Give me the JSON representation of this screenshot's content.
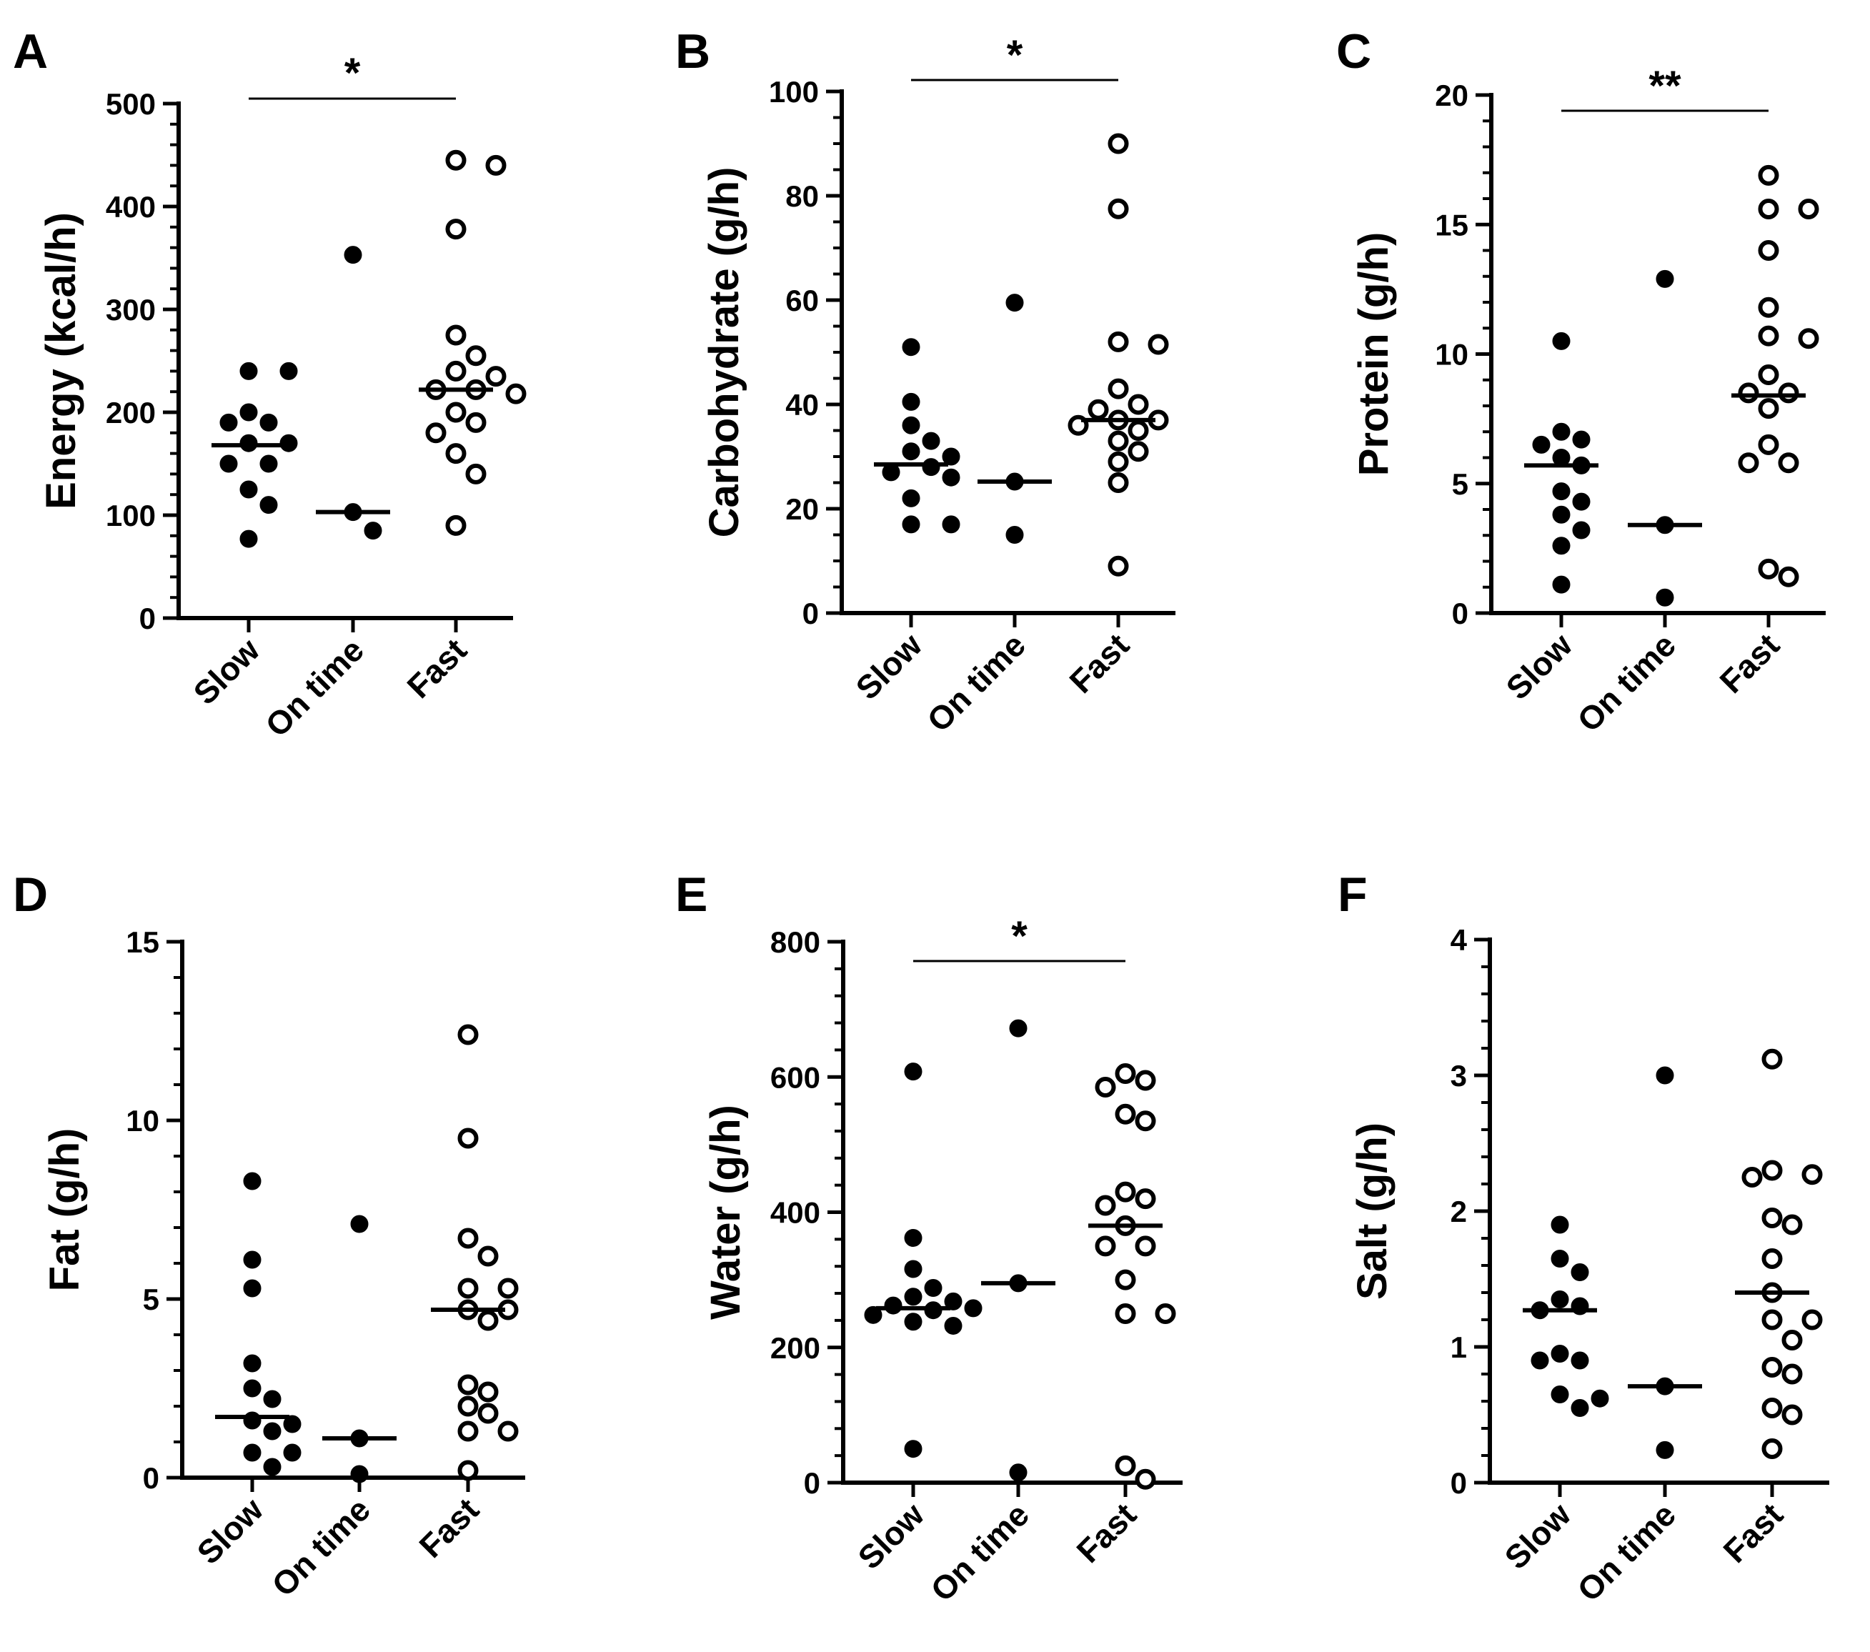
{
  "chart_data": [
    {
      "type": "scatter",
      "panel": "A",
      "ylabel": "Energy (kcal/h)",
      "ylim": [
        0,
        500
      ],
      "yticks": [
        0,
        100,
        200,
        300,
        400,
        500
      ],
      "minor_step": 20,
      "categories": [
        "Slow",
        "On time",
        "Fast"
      ],
      "series": [
        {
          "name": "Slow",
          "marker": "filled",
          "median": 168,
          "values": [
            240,
            240,
            190,
            200,
            190,
            170,
            150,
            125,
            170,
            150,
            110,
            77
          ]
        },
        {
          "name": "On time",
          "marker": "filled",
          "median": 103,
          "values": [
            353,
            103,
            85
          ]
        },
        {
          "name": "Fast",
          "marker": "open",
          "median": 222,
          "values": [
            445,
            440,
            378,
            275,
            255,
            240,
            235,
            222,
            222,
            218,
            200,
            190,
            180,
            160,
            140,
            90
          ]
        }
      ],
      "significance": {
        "label": "*",
        "from": "Slow",
        "to": "Fast"
      }
    },
    {
      "type": "scatter",
      "panel": "B",
      "ylabel": "Carbohydrate (g/h)",
      "ylim": [
        0,
        100
      ],
      "yticks": [
        0,
        20,
        40,
        60,
        80,
        100
      ],
      "minor_step": 5,
      "categories": [
        "Slow",
        "On time",
        "Fast"
      ],
      "series": [
        {
          "name": "Slow",
          "marker": "filled",
          "median": 28.5,
          "values": [
            51,
            40.5,
            36,
            33,
            30,
            31,
            28,
            26,
            27,
            22,
            17,
            17
          ]
        },
        {
          "name": "On time",
          "marker": "filled",
          "median": 25.2,
          "values": [
            59.5,
            25.2,
            15
          ]
        },
        {
          "name": "Fast",
          "marker": "open",
          "median": 37,
          "values": [
            90,
            77.5,
            52,
            51.5,
            43,
            40,
            39,
            37,
            37,
            36,
            35,
            33,
            31,
            29,
            25,
            9
          ]
        }
      ],
      "significance": {
        "label": "*",
        "from": "Slow",
        "to": "Fast"
      }
    },
    {
      "type": "scatter",
      "panel": "C",
      "ylabel": "Protein (g/h)",
      "ylim": [
        0,
        20
      ],
      "yticks": [
        0,
        5,
        10,
        15,
        20
      ],
      "minor_step": 1,
      "categories": [
        "Slow",
        "On time",
        "Fast"
      ],
      "series": [
        {
          "name": "Slow",
          "marker": "filled",
          "median": 5.7,
          "values": [
            10.5,
            7,
            6.5,
            6.7,
            6,
            5.7,
            4.7,
            4.3,
            3.8,
            3.2,
            2.6,
            1.1
          ]
        },
        {
          "name": "On time",
          "marker": "filled",
          "median": 3.4,
          "values": [
            12.9,
            3.4,
            0.6
          ]
        },
        {
          "name": "Fast",
          "marker": "open",
          "median": 8.4,
          "values": [
            16.9,
            15.6,
            15.6,
            14,
            11.8,
            10.7,
            10.6,
            9.2,
            8.5,
            8.5,
            7.9,
            6.5,
            5.8,
            5.8,
            1.7,
            1.4
          ]
        }
      ],
      "significance": {
        "label": "**",
        "from": "Slow",
        "to": "Fast"
      }
    },
    {
      "type": "scatter",
      "panel": "D",
      "ylabel": "Fat (g/h)",
      "ylim": [
        0,
        15
      ],
      "yticks": [
        0,
        5,
        10,
        15
      ],
      "minor_step": 1,
      "categories": [
        "Slow",
        "On time",
        "Fast"
      ],
      "series": [
        {
          "name": "Slow",
          "marker": "filled",
          "median": 1.7,
          "values": [
            8.3,
            6.1,
            5.3,
            3.2,
            2.5,
            2.2,
            1.6,
            1.5,
            1.3,
            0.7,
            0.7,
            0.3
          ]
        },
        {
          "name": "On time",
          "marker": "filled",
          "median": 1.1,
          "values": [
            7.1,
            1.1,
            0.1
          ]
        },
        {
          "name": "Fast",
          "marker": "open",
          "median": 4.7,
          "values": [
            12.4,
            9.5,
            6.7,
            6.2,
            5.3,
            5.3,
            4.7,
            4.7,
            4.4,
            2.6,
            2.4,
            2.0,
            1.8,
            1.3,
            1.3,
            0.2
          ]
        }
      ]
    },
    {
      "type": "scatter",
      "panel": "E",
      "ylabel": "Water (g/h)",
      "ylim": [
        0,
        800
      ],
      "yticks": [
        0,
        200,
        400,
        600,
        800
      ],
      "minor_step": 40,
      "categories": [
        "Slow",
        "On time",
        "Fast"
      ],
      "series": [
        {
          "name": "Slow",
          "marker": "filled",
          "median": 258,
          "values": [
            608,
            362,
            316,
            288,
            275,
            268,
            262,
            258,
            255,
            248,
            238,
            232,
            50
          ]
        },
        {
          "name": "On time",
          "marker": "filled",
          "median": 295,
          "values": [
            672,
            295,
            15
          ]
        },
        {
          "name": "Fast",
          "marker": "open",
          "median": 380,
          "values": [
            605,
            595,
            585,
            545,
            535,
            430,
            420,
            410,
            380,
            350,
            350,
            300,
            250,
            250,
            25,
            5
          ]
        }
      ],
      "significance": {
        "label": "*",
        "from": "Slow",
        "to": "Fast"
      }
    },
    {
      "type": "scatter",
      "panel": "F",
      "ylabel": "Salt (g/h)",
      "ylim": [
        0,
        4
      ],
      "yticks": [
        0,
        1,
        2,
        3,
        4
      ],
      "minor_step": 0.2,
      "categories": [
        "Slow",
        "On time",
        "Fast"
      ],
      "series": [
        {
          "name": "Slow",
          "marker": "filled",
          "median": 1.27,
          "values": [
            1.9,
            1.65,
            1.55,
            1.35,
            1.3,
            1.27,
            0.95,
            0.9,
            0.9,
            0.65,
            0.62,
            0.55
          ]
        },
        {
          "name": "On time",
          "marker": "filled",
          "median": 0.71,
          "values": [
            3.0,
            0.71,
            0.24
          ]
        },
        {
          "name": "Fast",
          "marker": "open",
          "median": 1.4,
          "values": [
            3.12,
            2.3,
            2.27,
            2.25,
            1.95,
            1.9,
            1.65,
            1.4,
            1.2,
            1.2,
            1.05,
            0.85,
            0.8,
            0.55,
            0.5,
            0.25
          ]
        }
      ]
    }
  ]
}
